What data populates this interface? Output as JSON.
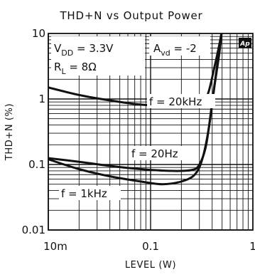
{
  "chart_data": {
    "type": "line",
    "title": "THD+N vs Output Power",
    "xlabel": "LEVEL (W)",
    "ylabel": "THD+N (%)",
    "x_scale": "log",
    "y_scale": "log",
    "xlim": [
      0.01,
      1
    ],
    "ylim": [
      0.01,
      10
    ],
    "x_tick_labels": [
      "10m",
      "0.1",
      "1"
    ],
    "y_tick_labels": [
      "10",
      "1",
      "0.1",
      "0.01"
    ],
    "grid": true,
    "conditions": [
      "VDD = 3.3V",
      "RL = 8Ω",
      "Avd = -2"
    ],
    "watermark": "Ap",
    "series": [
      {
        "name": "f = 20kHz",
        "points": [
          [
            0.01,
            1.5
          ],
          [
            0.02,
            1.15
          ],
          [
            0.04,
            0.95
          ],
          [
            0.08,
            0.82
          ],
          [
            0.15,
            0.8
          ],
          [
            0.25,
            0.84
          ],
          [
            0.33,
            0.95
          ],
          [
            0.37,
            1.3
          ],
          [
            0.42,
            3.0
          ],
          [
            0.48,
            8.0
          ],
          [
            0.5,
            12
          ]
        ]
      },
      {
        "name": "f = 20Hz",
        "points": [
          [
            0.01,
            0.125
          ],
          [
            0.02,
            0.11
          ],
          [
            0.04,
            0.095
          ],
          [
            0.08,
            0.085
          ],
          [
            0.15,
            0.08
          ],
          [
            0.25,
            0.082
          ],
          [
            0.3,
            0.1
          ],
          [
            0.35,
            0.2
          ],
          [
            0.4,
            0.9
          ],
          [
            0.45,
            3.5
          ],
          [
            0.5,
            12
          ]
        ]
      },
      {
        "name": "f = 1kHz",
        "points": [
          [
            0.01,
            0.12
          ],
          [
            0.02,
            0.085
          ],
          [
            0.04,
            0.066
          ],
          [
            0.08,
            0.055
          ],
          [
            0.13,
            0.05
          ],
          [
            0.2,
            0.055
          ],
          [
            0.27,
            0.07
          ],
          [
            0.32,
            0.12
          ],
          [
            0.37,
            0.35
          ],
          [
            0.42,
            1.5
          ],
          [
            0.47,
            5.0
          ],
          [
            0.5,
            12
          ]
        ]
      }
    ]
  }
}
